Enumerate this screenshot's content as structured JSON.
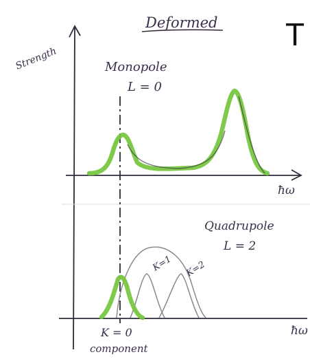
{
  "heading": "Deformed",
  "corner_letter": "T",
  "y_axis_label": "Strength",
  "x_axis_label_top": "ħω",
  "x_axis_label_bottom": "ħω",
  "monopole": {
    "name": "Monopole",
    "multipolarity": "L = 0"
  },
  "quadrupole": {
    "name": "Quadrupole",
    "multipolarity": "L = 2",
    "k_labels": [
      "K=1",
      "K=2"
    ]
  },
  "k0_label": "K = 0",
  "component_label": "component",
  "colors": {
    "ink": "#2b2b38",
    "green_strength": "#74c63c",
    "gray_curves": "#8a8a8a",
    "dark_line": "#3c3c48",
    "heading_ink": "#3b2d3d"
  }
}
